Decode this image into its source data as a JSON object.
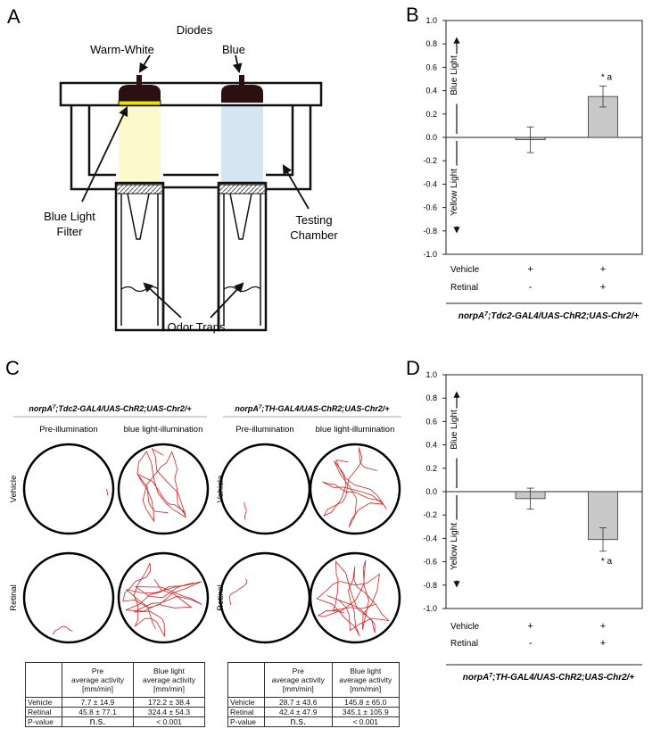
{
  "panel_labels": [
    "A",
    "B",
    "C",
    "D"
  ],
  "diagram": {
    "diodes": "Diodes",
    "warm_white": "Warm-White",
    "blue": "Blue",
    "filter": [
      "Blue Light",
      "Filter"
    ],
    "chamber": [
      "Testing",
      "Chamber"
    ],
    "traps": "Odor Traps"
  },
  "chart_data": [
    {
      "type": "bar",
      "values": [
        -0.02,
        0.35
      ],
      "errors": [
        0.11,
        0.09
      ],
      "significance": [
        null,
        "* a"
      ],
      "color": "#c8c8c8",
      "ylim": [
        -1,
        1
      ],
      "yticks": [
        {
          "value": -1,
          "label": "-1.0"
        },
        -0.8,
        -0.6,
        -0.4,
        -0.2,
        {
          "value": 0,
          "label": "0.0"
        },
        0.2,
        0.4,
        0.6,
        0.8,
        {
          "value": 1,
          "label": "1.0"
        }
      ],
      "axis_arrows": {
        "up": "Blue Light",
        "down": "Yellow Light"
      },
      "conditions": [
        {
          "name": "Vehicle",
          "marks": [
            "+",
            "+"
          ]
        },
        {
          "name": "Retinal",
          "marks": [
            "-",
            "+"
          ]
        }
      ],
      "genotype": {
        "gene": "norpA",
        "allele": "7",
        "rest": ";Tdc2-GAL4/UAS-ChR2;UAS-Chr2/+"
      }
    },
    {
      "type": "bar",
      "values": [
        -0.06,
        -0.41
      ],
      "errors": [
        0.09,
        0.1
      ],
      "significance": [
        null,
        "* a"
      ],
      "color": "#c8c8c8",
      "ylim": [
        -1,
        1
      ],
      "yticks": [
        {
          "value": -1,
          "label": "-1.0"
        },
        -0.8,
        -0.6,
        -0.4,
        -0.2,
        {
          "value": 0,
          "label": "0.0"
        },
        0.2,
        0.4,
        0.6,
        0.8,
        {
          "value": 1,
          "label": "1.0"
        }
      ],
      "axis_arrows": {
        "up": "Blue Light",
        "down": "Yellow Light"
      },
      "conditions": [
        {
          "name": "Vehicle",
          "marks": [
            "+",
            "+"
          ]
        },
        {
          "name": "Retinal",
          "marks": [
            "-",
            "+"
          ]
        }
      ],
      "genotype": {
        "gene": "norpA",
        "allele": "7",
        "rest": ";TH-GAL4/UAS-ChR2;UAS-Chr2/+"
      }
    }
  ],
  "panel_c": {
    "columns": [
      "Pre-illumination",
      "blue light-illumination"
    ],
    "rows": [
      "Vehicle",
      "Retinal"
    ],
    "groups": [
      {
        "genotype": {
          "gene": "norpA",
          "allele": "7",
          "rest": ";Tdc2-GAL4/UAS-ChR2;UAS-Chr2/+"
        },
        "table": {
          "header": [
            [
              "Pre",
              "average activity",
              "[mm/min]"
            ],
            [
              "Blue light",
              "average activity",
              "[mm/min]"
            ]
          ],
          "rows": [
            [
              "Vehicle",
              "7.7 ± 14.9",
              "172.2 ± 38.4"
            ],
            [
              "Retinal",
              "45.8 ± 77.1",
              "324.4 ± 54.3"
            ],
            [
              "P-value",
              "n.s.",
              "< 0.001"
            ]
          ]
        }
      },
      {
        "genotype": {
          "gene": "norpA",
          "allele": "7",
          "rest": ";TH-GAL4/UAS-ChR2;UAS-Chr2/+"
        },
        "table": {
          "header": [
            [
              "Pre",
              "average activity",
              "[mm/min]"
            ],
            [
              "Blue light",
              "average activity",
              "[mm/min]"
            ]
          ],
          "rows": [
            [
              "Vehicle",
              "28.7 ± 43.6",
              "145.8 ± 65.0"
            ],
            [
              "Retinal",
              "42.4 ± 47.9",
              "345.1 ± 105.9"
            ],
            [
              "P-value",
              "n.s.",
              "< 0.001"
            ]
          ]
        }
      }
    ]
  }
}
